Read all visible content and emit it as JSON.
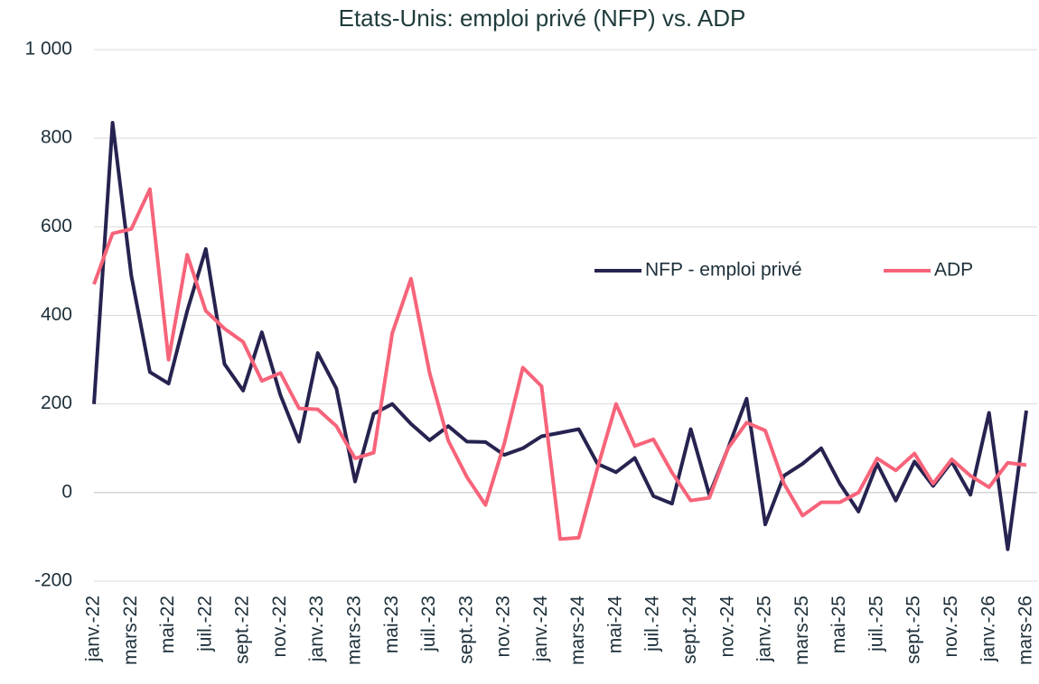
{
  "chart_data": {
    "type": "line",
    "title": "Etats-Unis: emploi privé (NFP) vs. ADP",
    "categories": [
      "janv.-22",
      null,
      "mars-22",
      null,
      "mai-22",
      null,
      "juil.-22",
      null,
      "sept.-22",
      null,
      "nov.-22",
      null,
      "janv.-23",
      null,
      "mars-23",
      null,
      "mai-23",
      null,
      "juil.-23",
      null,
      "sept.-23",
      null,
      "nov.-23",
      null,
      "janv.-24",
      null,
      "mars-24",
      null,
      "mai-24",
      null,
      "juil.-24",
      null,
      "sept.-24",
      null,
      "nov.-24",
      null,
      "janv.-25",
      null,
      "mars-25",
      null,
      "mai-25",
      null,
      "juil.-25",
      null,
      "sept.-25",
      null,
      "nov.-25",
      null,
      "janv.-26",
      null,
      "mars-26"
    ],
    "series": [
      {
        "name": "NFP - emploi privé",
        "color": "#262350",
        "values": [
          200,
          835,
          490,
          272,
          246,
          410,
          550,
          290,
          230,
          362,
          220,
          115,
          315,
          235,
          25,
          178,
          200,
          155,
          118,
          150,
          115,
          114,
          85,
          100,
          127,
          135,
          143,
          65,
          46,
          78,
          -8,
          -25,
          143,
          -5,
          100,
          212,
          -72,
          38,
          65,
          100,
          20,
          -43,
          65,
          -18,
          70,
          15,
          70,
          -5,
          180,
          -128,
          185
        ]
      },
      {
        "name": "ADP",
        "color": "#f7647a",
        "values": [
          470,
          585,
          595,
          685,
          300,
          537,
          410,
          370,
          340,
          252,
          270,
          190,
          188,
          150,
          77,
          90,
          360,
          483,
          270,
          117,
          35,
          -28,
          110,
          282,
          240,
          -105,
          -102,
          55,
          200,
          105,
          120,
          45,
          -18,
          -12,
          100,
          158,
          140,
          20,
          -52,
          -22,
          -22,
          0,
          77,
          50,
          88,
          20,
          75,
          38,
          12,
          67,
          62
        ]
      }
    ],
    "ylim": [
      -200,
      1000
    ],
    "yticks": [
      -200,
      0,
      200,
      400,
      600,
      800,
      {
        "value": 1000,
        "label": "1 000"
      }
    ],
    "grid": true,
    "legend_position": "right"
  }
}
